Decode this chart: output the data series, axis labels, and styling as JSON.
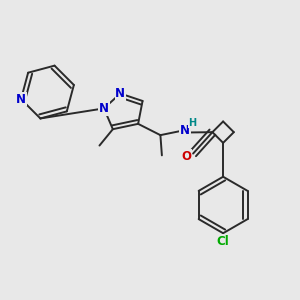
{
  "bg_color": "#e8e8e8",
  "bond_color": "#2a2a2a",
  "bond_width": 1.4,
  "atom_colors": {
    "N": "#0000cc",
    "O": "#cc0000",
    "Cl": "#00aa00",
    "H": "#008888",
    "C": "#2a2a2a"
  },
  "font_size_atom": 8.5,
  "font_size_small": 7.0,
  "font_size_cl": 8.5
}
